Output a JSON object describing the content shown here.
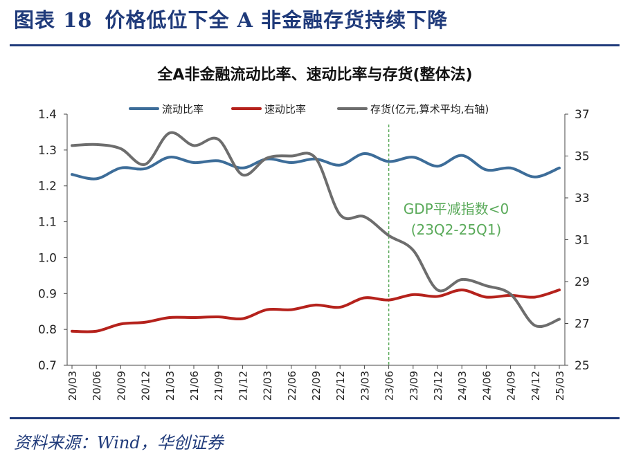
{
  "figure": {
    "number": "图表 18",
    "caption": "价格低位下全 A 非金融存货持续下降"
  },
  "source": "资料来源：Wind，华创证券",
  "colors": {
    "current_ratio": "#3d6d99",
    "quick_ratio": "#b5221c",
    "inventory": "#6d6d6d",
    "annotation": "#5aaa5a",
    "rule": "#1f3a7a"
  },
  "chart_data": {
    "type": "line",
    "title": "全A非金融流动比率、速动比率与存货(整体法)",
    "x": [
      "20/03",
      "20/06",
      "20/09",
      "20/12",
      "21/03",
      "21/06",
      "21/09",
      "21/12",
      "22/03",
      "22/06",
      "22/09",
      "22/12",
      "23/03",
      "23/06",
      "23/09",
      "23/12",
      "24/03",
      "24/06",
      "24/09",
      "24/12",
      "25/03"
    ],
    "series": [
      {
        "name": "流动比率",
        "axis": "left",
        "color": "#3d6d99",
        "values": [
          1.232,
          1.22,
          1.25,
          1.248,
          1.28,
          1.265,
          1.27,
          1.25,
          1.275,
          1.265,
          1.275,
          1.258,
          1.29,
          1.268,
          1.28,
          1.255,
          1.285,
          1.245,
          1.25,
          1.225,
          1.25
        ]
      },
      {
        "name": "速动比率",
        "axis": "left",
        "color": "#b5221c",
        "values": [
          0.795,
          0.795,
          0.815,
          0.82,
          0.833,
          0.833,
          0.835,
          0.83,
          0.855,
          0.855,
          0.868,
          0.862,
          0.888,
          0.882,
          0.897,
          0.892,
          0.91,
          0.89,
          0.895,
          0.89,
          0.91
        ]
      },
      {
        "name": "存货(亿元,算术平均,右轴)",
        "axis": "right",
        "color": "#6d6d6d",
        "values": [
          35.5,
          35.55,
          35.35,
          34.6,
          36.1,
          35.5,
          35.8,
          34.1,
          34.9,
          35.0,
          34.9,
          32.2,
          32.1,
          31.2,
          30.5,
          28.6,
          29.1,
          28.8,
          28.4,
          26.9,
          27.2
        ]
      }
    ],
    "ylim_left": [
      0.7,
      1.4
    ],
    "yticks_left": [
      "0.7",
      "0.8",
      "0.9",
      "1.0",
      "1.1",
      "1.2",
      "1.3",
      "1.4"
    ],
    "ylim_right": [
      25,
      37
    ],
    "yticks_right": [
      "25",
      "27",
      "29",
      "31",
      "33",
      "35",
      "37"
    ],
    "annotation": {
      "at": "23/06",
      "line1": "GDP平减指数<0",
      "line2": "(23Q2-25Q1)"
    },
    "legend": "top"
  }
}
